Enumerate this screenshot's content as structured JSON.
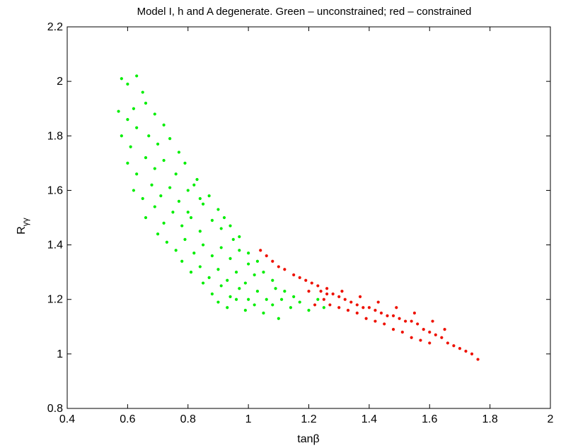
{
  "chart_data": {
    "type": "scatter",
    "title": "Model I, h and A degenerate. Green – unconstrained; red – constrained",
    "xlabel": "tanβ",
    "ylabel_main": "R",
    "ylabel_sub": "γγ",
    "xlim": [
      0.4,
      2.0
    ],
    "ylim": [
      0.8,
      2.2
    ],
    "x_ticks": [
      "0.4",
      "0.6",
      "0.8",
      "1",
      "1.2",
      "1.4",
      "1.6",
      "1.8",
      "2"
    ],
    "y_ticks": [
      "0.8",
      "1",
      "1.2",
      "1.4",
      "1.6",
      "1.8",
      "2",
      "2.2"
    ],
    "grid": false,
    "series": [
      {
        "color": "#00ee00",
        "points": [
          [
            0.58,
            2.01
          ],
          [
            0.6,
            1.99
          ],
          [
            0.63,
            2.02
          ],
          [
            0.65,
            1.96
          ],
          [
            0.57,
            1.89
          ],
          [
            0.6,
            1.86
          ],
          [
            0.62,
            1.9
          ],
          [
            0.66,
            1.92
          ],
          [
            0.69,
            1.88
          ],
          [
            0.72,
            1.84
          ],
          [
            0.58,
            1.8
          ],
          [
            0.61,
            1.76
          ],
          [
            0.63,
            1.83
          ],
          [
            0.67,
            1.8
          ],
          [
            0.7,
            1.77
          ],
          [
            0.74,
            1.79
          ],
          [
            0.77,
            1.74
          ],
          [
            0.6,
            1.7
          ],
          [
            0.63,
            1.66
          ],
          [
            0.66,
            1.72
          ],
          [
            0.69,
            1.68
          ],
          [
            0.72,
            1.71
          ],
          [
            0.76,
            1.66
          ],
          [
            0.79,
            1.7
          ],
          [
            0.83,
            1.64
          ],
          [
            0.62,
            1.6
          ],
          [
            0.65,
            1.57
          ],
          [
            0.68,
            1.62
          ],
          [
            0.71,
            1.58
          ],
          [
            0.74,
            1.61
          ],
          [
            0.77,
            1.56
          ],
          [
            0.8,
            1.6
          ],
          [
            0.84,
            1.57
          ],
          [
            0.87,
            1.58
          ],
          [
            0.9,
            1.53
          ],
          [
            0.66,
            1.5
          ],
          [
            0.69,
            1.54
          ],
          [
            0.72,
            1.48
          ],
          [
            0.75,
            1.52
          ],
          [
            0.78,
            1.47
          ],
          [
            0.81,
            1.5
          ],
          [
            0.84,
            1.45
          ],
          [
            0.88,
            1.49
          ],
          [
            0.91,
            1.46
          ],
          [
            0.94,
            1.47
          ],
          [
            0.97,
            1.43
          ],
          [
            0.7,
            1.44
          ],
          [
            0.73,
            1.41
          ],
          [
            0.76,
            1.38
          ],
          [
            0.79,
            1.42
          ],
          [
            0.82,
            1.37
          ],
          [
            0.85,
            1.4
          ],
          [
            0.88,
            1.36
          ],
          [
            0.91,
            1.39
          ],
          [
            0.94,
            1.35
          ],
          [
            0.97,
            1.38
          ],
          [
            1.0,
            1.37
          ],
          [
            1.03,
            1.34
          ],
          [
            0.78,
            1.34
          ],
          [
            0.81,
            1.3
          ],
          [
            0.84,
            1.32
          ],
          [
            0.87,
            1.28
          ],
          [
            0.9,
            1.31
          ],
          [
            0.93,
            1.27
          ],
          [
            0.96,
            1.3
          ],
          [
            0.99,
            1.26
          ],
          [
            1.02,
            1.29
          ],
          [
            1.05,
            1.3
          ],
          [
            1.08,
            1.27
          ],
          [
            0.85,
            1.26
          ],
          [
            0.88,
            1.22
          ],
          [
            0.91,
            1.25
          ],
          [
            0.94,
            1.21
          ],
          [
            0.97,
            1.24
          ],
          [
            1.0,
            1.2
          ],
          [
            1.03,
            1.23
          ],
          [
            1.06,
            1.2
          ],
          [
            1.09,
            1.24
          ],
          [
            1.12,
            1.23
          ],
          [
            1.15,
            1.21
          ],
          [
            0.9,
            1.19
          ],
          [
            0.93,
            1.17
          ],
          [
            0.96,
            1.2
          ],
          [
            0.99,
            1.16
          ],
          [
            1.02,
            1.18
          ],
          [
            1.05,
            1.15
          ],
          [
            1.08,
            1.18
          ],
          [
            1.11,
            1.2
          ],
          [
            1.14,
            1.17
          ],
          [
            1.17,
            1.19
          ],
          [
            1.1,
            1.13
          ],
          [
            1.2,
            1.16
          ],
          [
            1.23,
            1.2
          ],
          [
            1.25,
            1.17
          ],
          [
            0.8,
            1.52
          ],
          [
            0.82,
            1.62
          ],
          [
            0.85,
            1.55
          ],
          [
            0.92,
            1.5
          ],
          [
            0.95,
            1.42
          ],
          [
            1.0,
            1.33
          ]
        ]
      },
      {
        "color": "#ee1100",
        "points": [
          [
            1.04,
            1.38
          ],
          [
            1.06,
            1.36
          ],
          [
            1.08,
            1.34
          ],
          [
            1.1,
            1.32
          ],
          [
            1.12,
            1.31
          ],
          [
            1.15,
            1.29
          ],
          [
            1.17,
            1.28
          ],
          [
            1.19,
            1.27
          ],
          [
            1.21,
            1.26
          ],
          [
            1.23,
            1.25
          ],
          [
            1.24,
            1.23
          ],
          [
            1.26,
            1.22
          ],
          [
            1.28,
            1.22
          ],
          [
            1.3,
            1.21
          ],
          [
            1.32,
            1.2
          ],
          [
            1.34,
            1.19
          ],
          [
            1.36,
            1.18
          ],
          [
            1.38,
            1.17
          ],
          [
            1.4,
            1.17
          ],
          [
            1.42,
            1.16
          ],
          [
            1.44,
            1.15
          ],
          [
            1.46,
            1.14
          ],
          [
            1.48,
            1.14
          ],
          [
            1.5,
            1.13
          ],
          [
            1.52,
            1.12
          ],
          [
            1.54,
            1.12
          ],
          [
            1.56,
            1.11
          ],
          [
            1.58,
            1.09
          ],
          [
            1.6,
            1.08
          ],
          [
            1.62,
            1.07
          ],
          [
            1.64,
            1.06
          ],
          [
            1.66,
            1.04
          ],
          [
            1.68,
            1.03
          ],
          [
            1.7,
            1.02
          ],
          [
            1.72,
            1.01
          ],
          [
            1.74,
            1.0
          ],
          [
            1.76,
            0.98
          ],
          [
            1.22,
            1.18
          ],
          [
            1.25,
            1.2
          ],
          [
            1.27,
            1.18
          ],
          [
            1.3,
            1.17
          ],
          [
            1.33,
            1.16
          ],
          [
            1.36,
            1.15
          ],
          [
            1.39,
            1.13
          ],
          [
            1.42,
            1.12
          ],
          [
            1.45,
            1.11
          ],
          [
            1.48,
            1.09
          ],
          [
            1.51,
            1.08
          ],
          [
            1.54,
            1.06
          ],
          [
            1.57,
            1.05
          ],
          [
            1.6,
            1.04
          ],
          [
            1.2,
            1.23
          ],
          [
            1.26,
            1.24
          ],
          [
            1.31,
            1.23
          ],
          [
            1.37,
            1.21
          ],
          [
            1.43,
            1.19
          ],
          [
            1.49,
            1.17
          ],
          [
            1.55,
            1.15
          ],
          [
            1.61,
            1.12
          ],
          [
            1.65,
            1.09
          ]
        ]
      }
    ]
  }
}
